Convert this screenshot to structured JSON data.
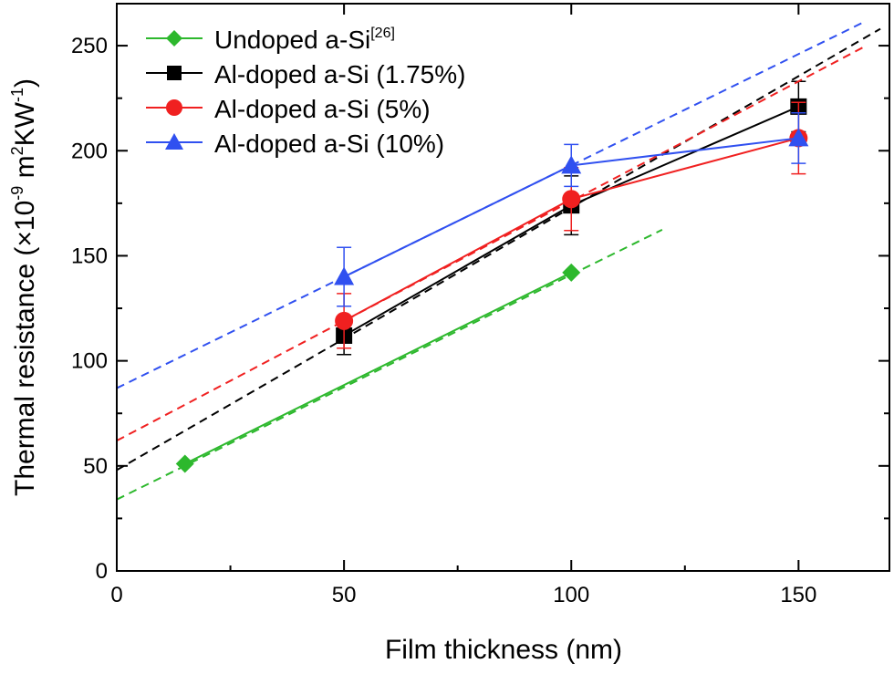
{
  "chart_data": {
    "type": "line",
    "xlabel": "Film thickness (nm)",
    "ylabel": {
      "base": "Thermal resistance (×10",
      "exp1": "-9",
      "mid": " m",
      "exp2": "2",
      "mid2": "KW",
      "exp3": "-1",
      "end": ")"
    },
    "xlim": [
      0,
      170
    ],
    "ylim": [
      0,
      270
    ],
    "xticks": [
      0,
      50,
      100,
      150
    ],
    "yticks": [
      0,
      50,
      100,
      150,
      200,
      250
    ],
    "grid": false,
    "legend_position": "top-left",
    "series": [
      {
        "name": "Undoped a-Si",
        "name_sup": "[26]",
        "color": "#2db82d",
        "marker": "diamond",
        "x": [
          15,
          100
        ],
        "y": [
          51,
          142
        ],
        "err": [
          0,
          0
        ],
        "fit": {
          "intercept": 34,
          "slope": 1.07,
          "x_range": [
            0,
            120
          ]
        }
      },
      {
        "name": "Al-doped a-Si (1.75%)",
        "name_sup": "",
        "color": "#000000",
        "marker": "square",
        "x": [
          50,
          100,
          150
        ],
        "y": [
          112,
          174,
          221
        ],
        "err": [
          9,
          14,
          12
        ],
        "fit": {
          "intercept": 48,
          "slope": 1.25,
          "x_range": [
            0,
            168
          ]
        }
      },
      {
        "name": "Al-doped a-Si (5%)",
        "name_sup": "",
        "color": "#f02020",
        "marker": "circle",
        "x": [
          50,
          100,
          150
        ],
        "y": [
          119,
          177,
          206
        ],
        "err": [
          13,
          15,
          17
        ],
        "fit": {
          "intercept": 62,
          "slope": 1.14,
          "x_range": [
            0,
            165
          ]
        }
      },
      {
        "name": "Al-doped a-Si (10%)",
        "name_sup": "",
        "color": "#3050f0",
        "marker": "triangle",
        "x": [
          50,
          100,
          150
        ],
        "y": [
          140,
          193,
          206
        ],
        "err": [
          14,
          10,
          12
        ],
        "fit": {
          "intercept": 87,
          "slope": 1.06,
          "x_range": [
            0,
            164
          ]
        }
      }
    ]
  }
}
